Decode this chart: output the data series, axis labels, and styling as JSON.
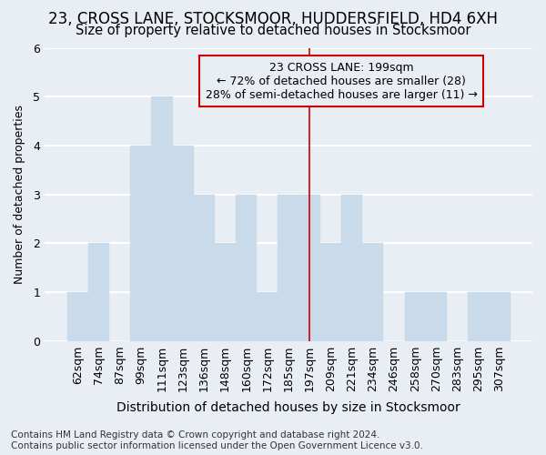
{
  "title": "23, CROSS LANE, STOCKSMOOR, HUDDERSFIELD, HD4 6XH",
  "subtitle": "Size of property relative to detached houses in Stocksmoor",
  "xlabel": "Distribution of detached houses by size in Stocksmoor",
  "ylabel": "Number of detached properties",
  "categories": [
    "62sqm",
    "74sqm",
    "87sqm",
    "99sqm",
    "111sqm",
    "123sqm",
    "136sqm",
    "148sqm",
    "160sqm",
    "172sqm",
    "185sqm",
    "197sqm",
    "209sqm",
    "221sqm",
    "234sqm",
    "246sqm",
    "258sqm",
    "270sqm",
    "283sqm",
    "295sqm",
    "307sqm"
  ],
  "values": [
    1,
    2,
    0,
    4,
    5,
    4,
    3,
    2,
    3,
    1,
    3,
    3,
    2,
    3,
    2,
    0,
    1,
    1,
    0,
    1,
    1
  ],
  "bar_color": "#c9daea",
  "bar_edge_color": "#c9daea",
  "vline_x": 11,
  "vline_color": "#cc0000",
  "ylim": [
    0,
    6
  ],
  "yticks": [
    0,
    1,
    2,
    3,
    4,
    5,
    6
  ],
  "annotation_title": "23 CROSS LANE: 199sqm",
  "annotation_line1": "← 72% of detached houses are smaller (28)",
  "annotation_line2": "28% of semi-detached houses are larger (11) →",
  "annotation_box_color": "#cc0000",
  "footer_line1": "Contains HM Land Registry data © Crown copyright and database right 2024.",
  "footer_line2": "Contains public sector information licensed under the Open Government Licence v3.0.",
  "background_color": "#e8eef4",
  "grid_color": "#ffffff",
  "title_fontsize": 12,
  "subtitle_fontsize": 10.5,
  "axis_label_fontsize": 10,
  "tick_fontsize": 9,
  "annotation_fontsize": 9,
  "footer_fontsize": 7.5,
  "ylabel_fontsize": 9
}
